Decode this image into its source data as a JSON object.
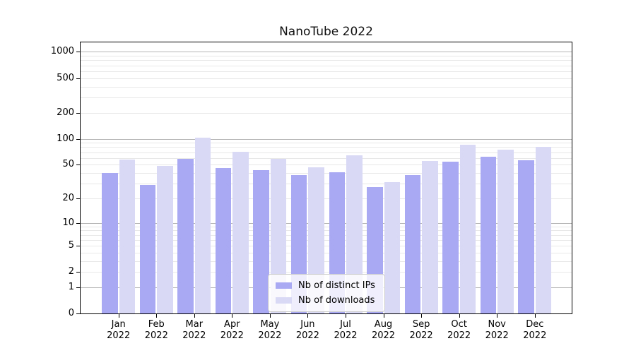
{
  "title": "NanoTube 2022",
  "chart_data": {
    "type": "bar",
    "title": "NanoTube 2022",
    "categories": [
      "Jan 2022",
      "Feb 2022",
      "Mar 2022",
      "Apr 2022",
      "May 2022",
      "Jun 2022",
      "Jul 2022",
      "Aug 2022",
      "Sep 2022",
      "Oct 2022",
      "Nov 2022",
      "Dec 2022"
    ],
    "series": [
      {
        "name": "Nb of distinct IPs",
        "key": "distinct-ips",
        "color": "#a9a9f3",
        "values": [
          40,
          29,
          59,
          46,
          43,
          38,
          41,
          27,
          38,
          54,
          62,
          56
        ]
      },
      {
        "name": "Nb of downloads",
        "key": "downloads",
        "color": "#d9d9f6",
        "values": [
          57,
          48,
          103,
          71,
          58,
          47,
          64,
          31,
          55,
          85,
          75,
          81
        ]
      }
    ],
    "xlabel": "",
    "ylabel": "",
    "yscale": "log1p",
    "ylim": [
      0,
      1300
    ],
    "yticks": [
      0,
      1,
      2,
      5,
      10,
      20,
      50,
      100,
      200,
      500,
      1000
    ],
    "major_gridlines": [
      1,
      10,
      100,
      1000
    ],
    "minor_gridlines": [
      2,
      3,
      4,
      5,
      6,
      7,
      8,
      9,
      20,
      30,
      40,
      50,
      60,
      70,
      80,
      90,
      200,
      300,
      400,
      500,
      600,
      700,
      800,
      900
    ],
    "grid": true,
    "legend_position": "lower center"
  },
  "colors": {
    "major_grid": "#b4b4b4",
    "minor_grid": "#e8e8e8",
    "spine": "#000000",
    "background": "#ffffff"
  }
}
